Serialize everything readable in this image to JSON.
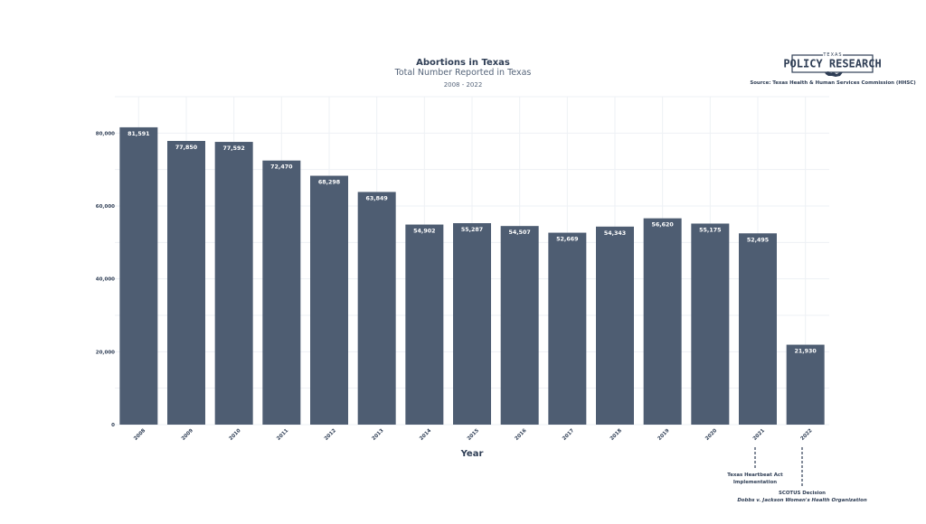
{
  "colors": {
    "bar": "#4e5d72",
    "text": "#2f3e55",
    "grid": "#eef1f5"
  },
  "logo": {
    "top": "TEXAS",
    "main": "POLICY RESEARCH",
    "icon": "texas-map-icon"
  },
  "source": "Source: Texas Health & Human Services Commission (HHSC)",
  "chart_data": {
    "type": "bar",
    "title": "Abortions in Texas",
    "subtitle": "Total Number Reported in Texas",
    "date_range": "2008 - 2022",
    "xlabel": "Year",
    "ylabel": "",
    "categories": [
      "2008",
      "2009",
      "2010",
      "2011",
      "2012",
      "2013",
      "2014",
      "2015",
      "2016",
      "2017",
      "2018",
      "2019",
      "2020",
      "2021",
      "2022"
    ],
    "values": [
      81591,
      77850,
      77592,
      72470,
      68298,
      63849,
      54902,
      55287,
      54507,
      52669,
      54343,
      56620,
      55175,
      52495,
      21930
    ],
    "data_labels": [
      "81,591",
      "77,850",
      "77,592",
      "72,470",
      "68,298",
      "63,849",
      "54,902",
      "55,287",
      "54,507",
      "52,669",
      "54,343",
      "56,620",
      "55,175",
      "52,495",
      "21,930"
    ],
    "ylim": [
      0,
      90000
    ],
    "yticks": [
      0,
      20000,
      40000,
      60000,
      80000
    ],
    "ytick_labels": [
      "0",
      "20,000",
      "40,000",
      "60,000",
      "80,000"
    ],
    "grid": true,
    "annotations": [
      {
        "category": "2021",
        "lines": [
          "Texas Heartbeat Act",
          "Implementation"
        ]
      },
      {
        "category": "2022",
        "lines": [
          "SCOTUS Decision"
        ],
        "italic": "Dobbs v. Jackson Women's Health Organization"
      }
    ]
  }
}
